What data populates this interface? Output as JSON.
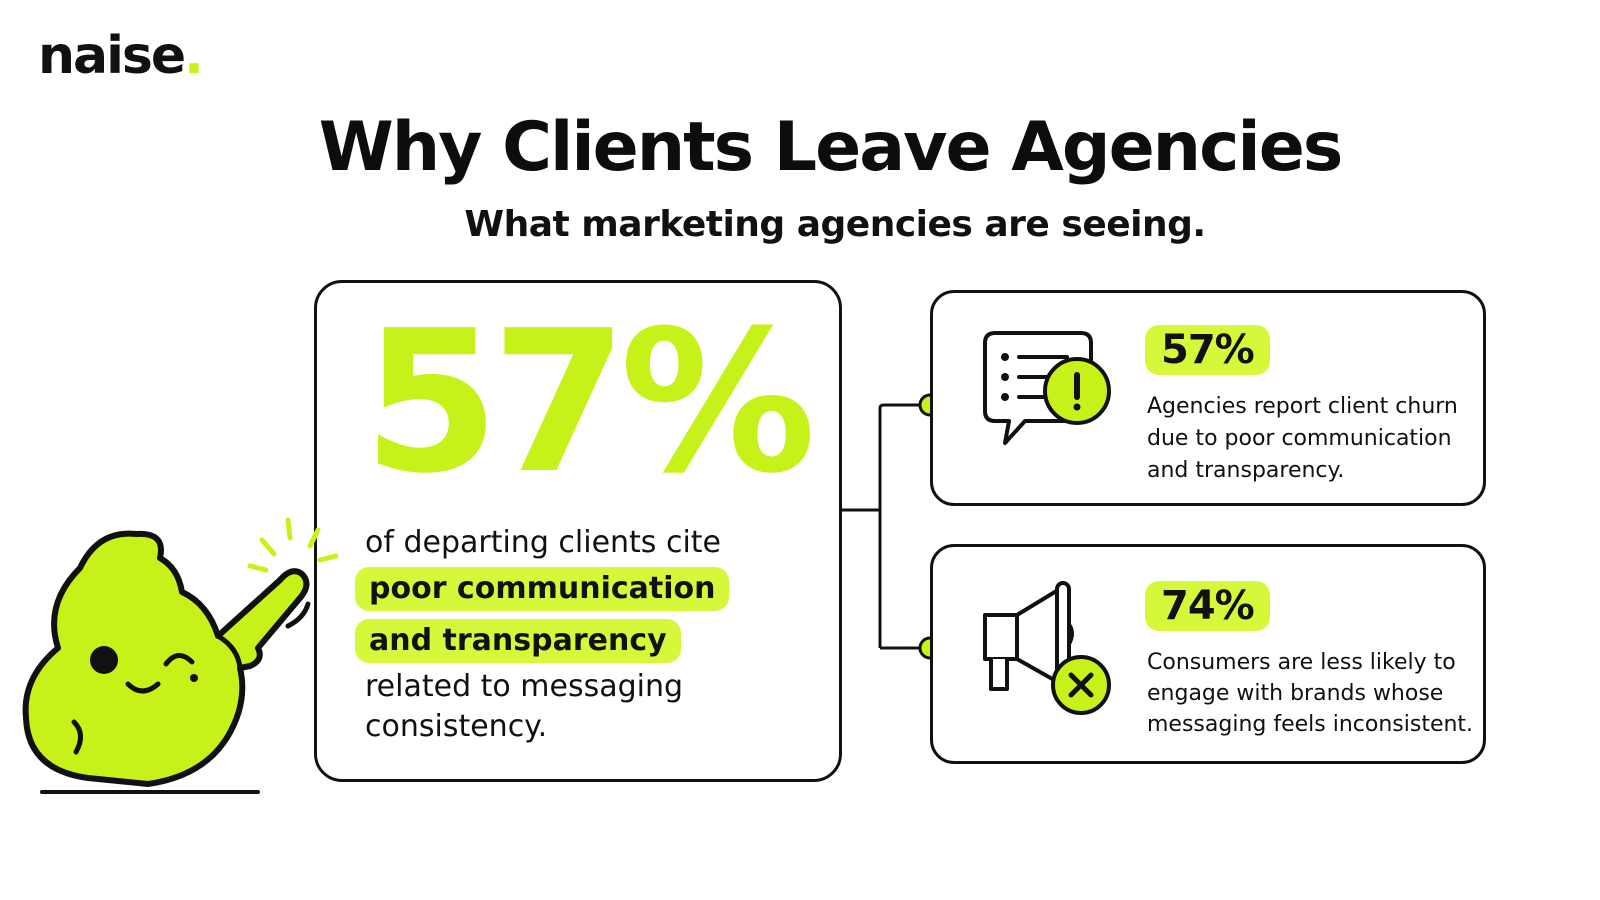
{
  "brand": {
    "name": "naise",
    "dot": "."
  },
  "header": {
    "title": "Why Clients Leave Agencies",
    "subtitle": "What marketing agencies are seeing."
  },
  "main_stat": {
    "value": "57%",
    "line1": "of departing clients cite",
    "highlight1": "poor communication",
    "highlight2": "and transparency",
    "line2": "related to messaging",
    "line3": "consistency."
  },
  "cards": [
    {
      "value": "57%",
      "text": "Agencies report client churn due to poor communication and transparency.",
      "icon": "chat-alert-icon"
    },
    {
      "value": "74%",
      "text": "Consumers are less likely to engage with brands whose messaging feels inconsistent.",
      "icon": "megaphone-x-icon"
    }
  ],
  "colors": {
    "accent": "#c6f21a",
    "highlight": "#d6f83a",
    "ink": "#111111"
  },
  "mascot": {
    "icon": "winking-mascot-icon"
  }
}
